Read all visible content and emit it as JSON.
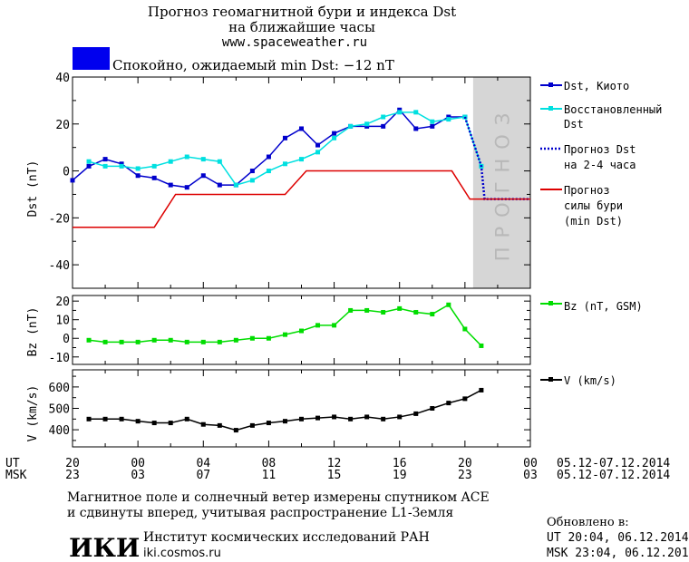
{
  "header": {
    "title_line1": "Прогноз геомагнитной бури и индекса Dst",
    "title_line2": "на ближайшие часы",
    "url": "www.spaceweather.ru",
    "status_color": "#0000ee",
    "status_text": "Спокойно, ожидаемый min Dst: −12 nT"
  },
  "legend": {
    "dst_kyoto": "Dst, Киото",
    "dst_rec_1": "Восстановленный",
    "dst_rec_2": "Dst",
    "dst_fc_1": "Прогноз Dst",
    "dst_fc_2": "на 2-4 часа",
    "storm_1": "Прогноз",
    "storm_2": "силы бури",
    "storm_3": "(min Dst)",
    "bz": "Bz (nT, GSM)",
    "v": "V (km/s)"
  },
  "forecast_label": "ПРОГНОЗ",
  "time_axis": {
    "ut_label": "UT",
    "msk_label": "MSK",
    "ut_ticks": [
      "20",
      "00",
      "04",
      "08",
      "12",
      "16",
      "20",
      "00"
    ],
    "msk_ticks": [
      "23",
      "03",
      "07",
      "11",
      "15",
      "19",
      "23",
      "03"
    ],
    "ut_range": "05.12-07.12.2014",
    "msk_range": "05.12-07.12.2014"
  },
  "footer": {
    "note_1": "Магнитное поле и солнечный ветер измерены спутником ACE",
    "note_2": "и сдвинуты вперед, учитывая распространение L1-Земля",
    "logo": "ИКИ",
    "institute": "Институт космических исследований РАН",
    "site": "iki.cosmos.ru",
    "updated_label": "Обновлено в:",
    "updated_ut": "UT  20:04, 06.12.2014",
    "updated_msk": "MSK 23:04, 06.12.2014"
  },
  "chart_data": [
    {
      "type": "line",
      "ylabel": "Dst (nT)",
      "x_unit": "hours since 20 UT 05.12.2014",
      "xlim": [
        0,
        28
      ],
      "ylim": [
        -50,
        40
      ],
      "yticks": [
        40,
        20,
        0,
        -20,
        -40
      ],
      "forecast_region": [
        24.5,
        28
      ],
      "series": [
        {
          "name": "Dst, Киото",
          "color": "#0000cc",
          "x": [
            0,
            1,
            2,
            3,
            4,
            5,
            6,
            7,
            8,
            9,
            10,
            11,
            12,
            13,
            14,
            15,
            16,
            17,
            18,
            19,
            20,
            21,
            22,
            23,
            24
          ],
          "values": [
            -4,
            2,
            5,
            3,
            -2,
            -3,
            -6,
            -7,
            -2,
            -6,
            -6,
            0,
            6,
            14,
            18,
            11,
            16,
            19,
            19,
            19,
            26,
            18,
            19,
            23,
            23
          ]
        },
        {
          "name": "Восстановленный Dst",
          "color": "#00e0e0",
          "x": [
            1,
            2,
            3,
            4,
            5,
            6,
            7,
            8,
            9,
            10,
            11,
            12,
            13,
            14,
            15,
            16,
            17,
            18,
            19,
            20,
            21,
            22,
            23,
            24,
            25
          ],
          "values": [
            4,
            2,
            2,
            1,
            2,
            4,
            6,
            5,
            4,
            -6,
            -4,
            0,
            3,
            5,
            8,
            14,
            19,
            20,
            23,
            25,
            25,
            21,
            22,
            23,
            2
          ]
        },
        {
          "name": "Прогноз Dst на 2-4 часа",
          "color": "#0000cc",
          "x": [
            24,
            25,
            25.2,
            28
          ],
          "values": [
            23,
            2,
            -12,
            -12
          ]
        },
        {
          "name": "Прогноз силы бури (min Dst)",
          "color": "#dd0000",
          "x": [
            0,
            5,
            6.3,
            13,
            14.3,
            23.2,
            24.3,
            28
          ],
          "values": [
            -24,
            -24,
            -10,
            -10,
            0,
            0,
            -12,
            -12
          ]
        }
      ]
    },
    {
      "type": "line",
      "ylabel": "Bz (nT)",
      "x_unit": "hours since 20 UT 05.12.2014",
      "xlim": [
        0,
        28
      ],
      "ylim": [
        -14,
        23
      ],
      "yticks": [
        20,
        10,
        0,
        -10
      ],
      "series": [
        {
          "name": "Bz (nT, GSM)",
          "color": "#00dd00",
          "x": [
            1,
            2,
            3,
            4,
            5,
            6,
            7,
            8,
            9,
            10,
            11,
            12,
            13,
            14,
            15,
            16,
            17,
            18,
            19,
            20,
            21,
            22,
            23,
            24,
            25
          ],
          "values": [
            -1,
            -2,
            -2,
            -2,
            -1,
            -1,
            -2,
            -2,
            -2,
            -1,
            0,
            0,
            2,
            4,
            7,
            7,
            15,
            15,
            14,
            16,
            14,
            13,
            18,
            5,
            -4
          ]
        }
      ]
    },
    {
      "type": "line",
      "ylabel": "V (km/s)",
      "x_unit": "hours since 20 UT 05.12.2014",
      "xlim": [
        0,
        28
      ],
      "ylim": [
        320,
        680
      ],
      "yticks": [
        600,
        500,
        400
      ],
      "series": [
        {
          "name": "V (km/s)",
          "color": "#000000",
          "x": [
            1,
            2,
            3,
            4,
            5,
            6,
            7,
            8,
            9,
            10,
            11,
            12,
            13,
            14,
            15,
            16,
            17,
            18,
            19,
            20,
            21,
            22,
            23,
            24,
            25
          ],
          "values": [
            450,
            450,
            450,
            440,
            432,
            432,
            450,
            425,
            420,
            398,
            420,
            432,
            440,
            450,
            455,
            460,
            450,
            460,
            450,
            460,
            475,
            500,
            525,
            545,
            585
          ]
        }
      ]
    }
  ]
}
